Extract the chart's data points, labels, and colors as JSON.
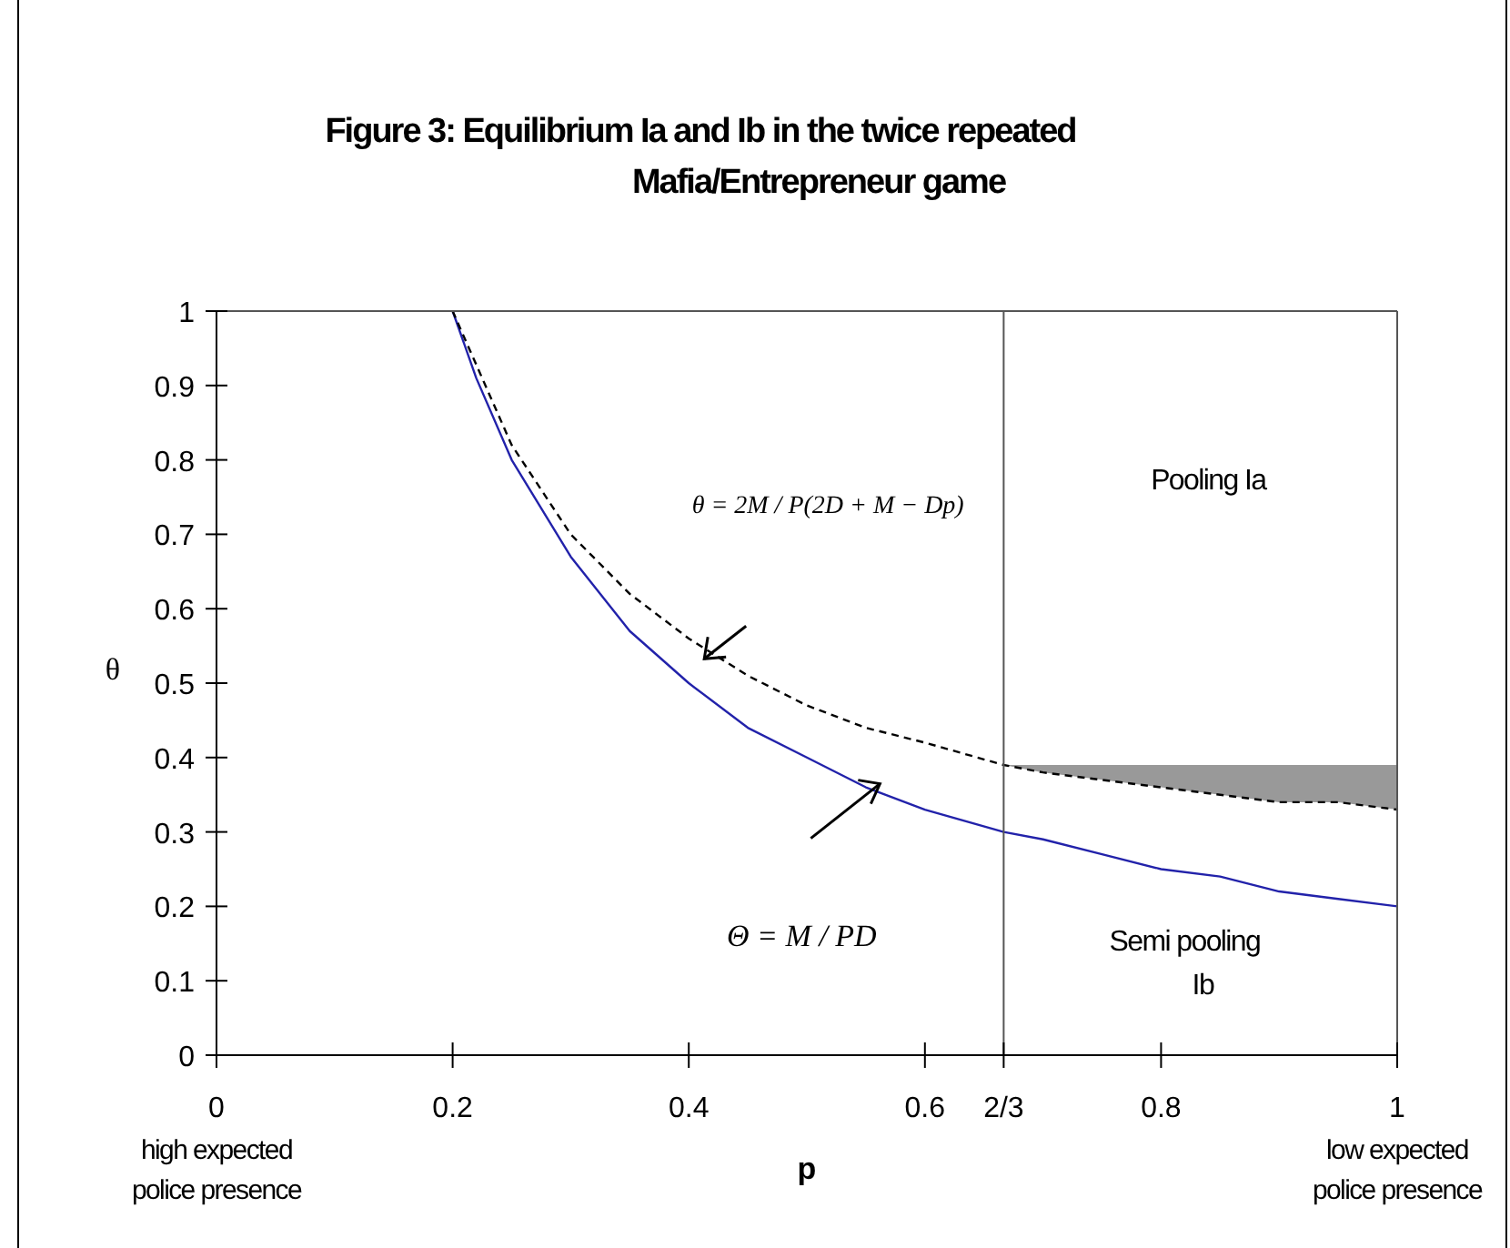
{
  "chart_data": {
    "type": "line",
    "title": "Figure 3: Equilibrium Ia and Ib in the twice repeated Mafia/Entrepreneur game",
    "xlabel": "p",
    "ylabel": "θ",
    "xlim": [
      0,
      1
    ],
    "ylim": [
      0,
      1
    ],
    "xticks": [
      0,
      0.2,
      0.4,
      0.6,
      {
        "value": 0.6667,
        "label": "2/3"
      },
      0.8,
      1
    ],
    "yticks": [
      0,
      0.1,
      0.2,
      0.3,
      0.4,
      0.5,
      0.6,
      0.7,
      0.8,
      0.9,
      1
    ],
    "marker": "none",
    "series": [
      {
        "color": "#2222aa",
        "line_style": "solid",
        "x": [
          0.2,
          0.22,
          0.25,
          0.3,
          0.35,
          0.4,
          0.45,
          0.5,
          0.55,
          0.6,
          0.6667,
          0.7,
          0.75,
          0.8,
          0.85,
          0.9,
          0.95,
          1
        ],
        "values": [
          1,
          0.91,
          0.8,
          0.67,
          0.57,
          0.5,
          0.44,
          0.4,
          0.36,
          0.33,
          0.3,
          0.29,
          0.27,
          0.25,
          0.24,
          0.22,
          0.21,
          0.2
        ]
      },
      {
        "color": "#000000",
        "line_style": "dashed",
        "x": [
          0.2,
          0.25,
          0.3,
          0.35,
          0.4,
          0.45,
          0.5,
          0.55,
          0.6,
          0.6667,
          0.7,
          0.75,
          0.8,
          0.85,
          0.9,
          0.95,
          1
        ],
        "values": [
          1,
          0.82,
          0.7,
          0.62,
          0.56,
          0.51,
          0.47,
          0.44,
          0.42,
          0.39,
          0.38,
          0.37,
          0.36,
          0.35,
          0.34,
          0.34,
          0.33
        ],
        "lower": [
          null,
          null,
          null,
          null,
          null,
          null,
          null,
          null,
          null,
          0.39,
          0.38,
          0.37,
          0.36,
          0.35,
          0.34,
          0.34,
          0.33
        ],
        "upper": [
          null,
          null,
          null,
          null,
          null,
          null,
          null,
          null,
          null,
          0.39,
          0.39,
          0.39,
          0.39,
          0.39,
          0.39,
          0.39,
          0.39
        ]
      }
    ],
    "ref_lines": [
      {
        "axis": "x",
        "value": 0.6667,
        "color": "#555555"
      }
    ],
    "annotations": [
      "θ = 2M / P(2D + M − Dp)",
      "Θ = M / PD",
      "Pooling Ia",
      "Semi pooling Ib",
      "high expected police presence",
      "low expected police presence"
    ]
  }
}
